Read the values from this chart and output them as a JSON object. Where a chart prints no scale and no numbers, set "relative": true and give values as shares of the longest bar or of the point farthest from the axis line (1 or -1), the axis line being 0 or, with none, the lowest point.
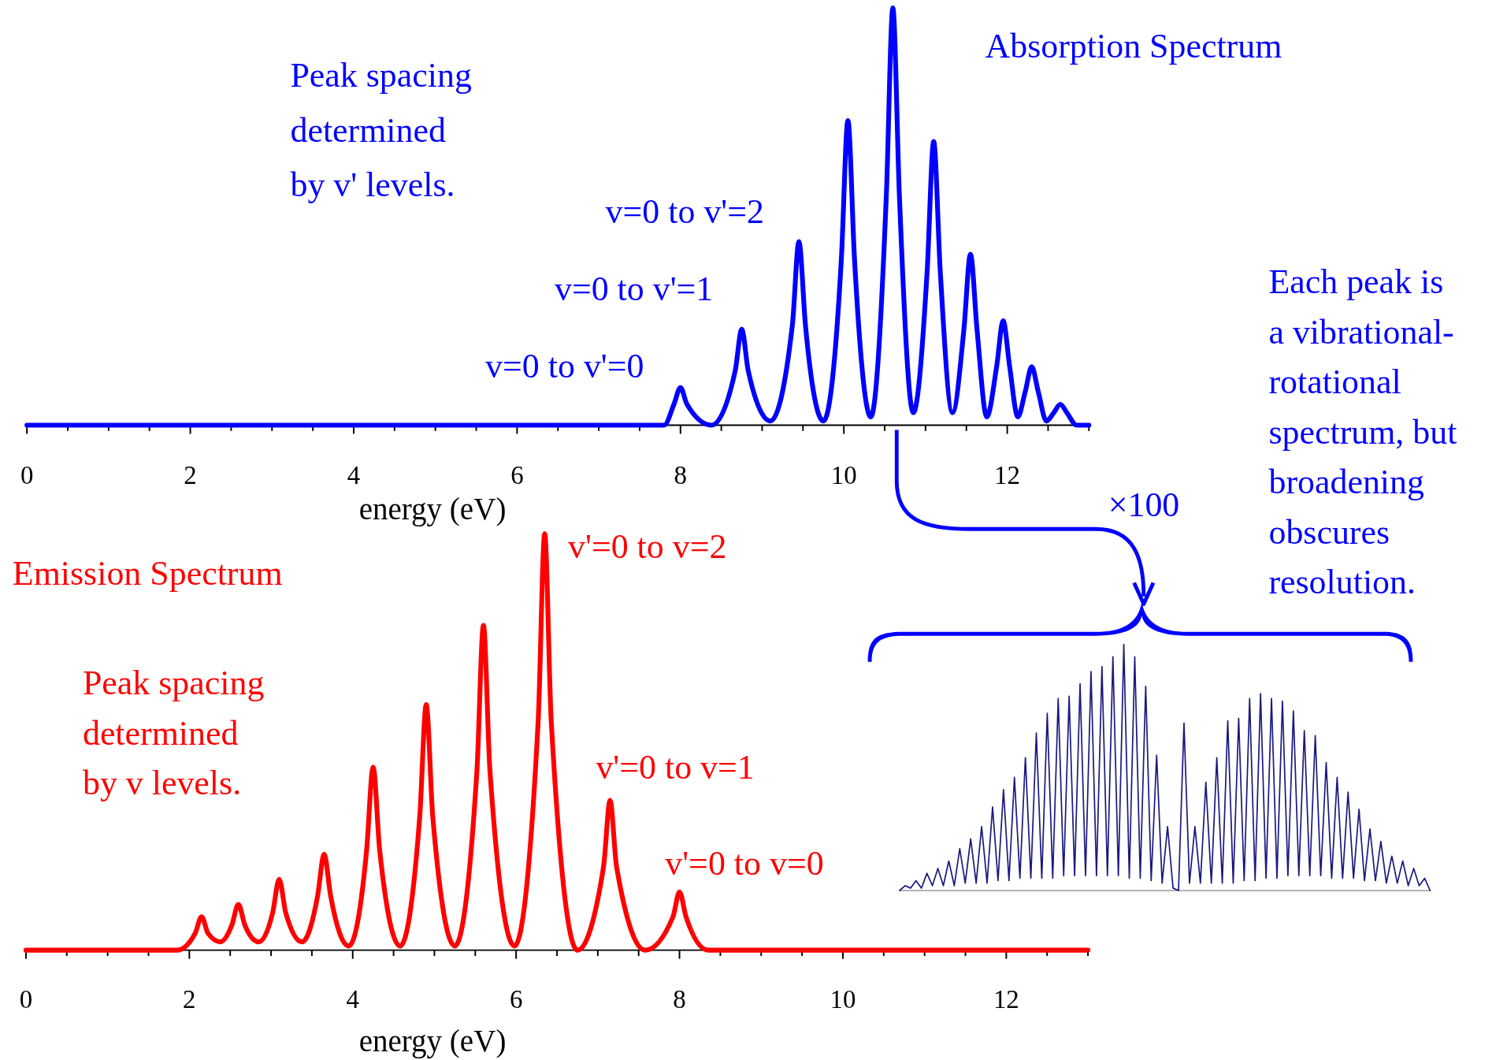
{
  "chart_data": [
    {
      "type": "line",
      "title": "Absorption Spectrum",
      "xlabel": "energy (eV)",
      "relative": true,
      "xlim": [
        0,
        13
      ],
      "xticks": [
        0,
        {
          "value": 0.5,
          "label": null
        },
        {
          "value": 1,
          "label": null
        },
        {
          "value": 1.5,
          "label": null
        },
        2,
        {
          "value": 2.5,
          "label": null
        },
        {
          "value": 3,
          "label": null
        },
        {
          "value": 3.5,
          "label": null
        },
        4,
        {
          "value": 4.5,
          "label": null
        },
        {
          "value": 5,
          "label": null
        },
        {
          "value": 5.5,
          "label": null
        },
        6,
        {
          "value": 6.5,
          "label": null
        },
        {
          "value": 7,
          "label": null
        },
        {
          "value": 7.5,
          "label": null
        },
        8,
        {
          "value": 8.5,
          "label": null
        },
        {
          "value": 9,
          "label": null
        },
        {
          "value": 9.5,
          "label": null
        },
        10,
        {
          "value": 10.5,
          "label": null
        },
        {
          "value": 11,
          "label": null
        },
        {
          "value": 11.5,
          "label": null
        },
        12,
        {
          "value": 12.5,
          "label": null
        },
        {
          "value": 13,
          "label": null
        }
      ],
      "annotations": [
        "Peak spacing\ndetermined\nby v' levels.",
        "v=0 to v'=0",
        "v=0 to v'=1",
        "v=0 to v'=2",
        "Each peak is\na vibrational-\nrotational\nspectrum, but\nbroadening\nobscures\nresolution.",
        "×100"
      ],
      "series": [
        {
          "color": "#0000ff",
          "x": [
            0,
            7.8,
            7.92,
            8.0,
            8.08,
            8.38,
            8.67,
            8.75,
            8.83,
            9.1,
            9.37,
            9.45,
            9.53,
            9.75,
            9.97,
            10.05,
            10.13,
            10.33,
            10.52,
            10.6,
            10.68,
            10.85,
            11.02,
            11.1,
            11.18,
            11.33,
            11.47,
            11.55,
            11.63,
            11.75,
            11.87,
            11.95,
            12.03,
            12.13,
            12.22,
            12.3,
            12.38,
            12.48,
            12.57,
            12.65,
            12.73,
            12.85,
            13
          ],
          "values": [
            0,
            0,
            0.05,
            0.09,
            0.05,
            0,
            0.13,
            0.23,
            0.13,
            0.01,
            0.24,
            0.44,
            0.24,
            0.01,
            0.4,
            0.73,
            0.4,
            0.02,
            0.55,
            1,
            0.55,
            0.03,
            0.37,
            0.68,
            0.37,
            0.03,
            0.23,
            0.41,
            0.23,
            0.02,
            0.14,
            0.25,
            0.14,
            0.02,
            0.08,
            0.14,
            0.08,
            0.01,
            0.03,
            0.05,
            0.03,
            0,
            0
          ]
        }
      ]
    },
    {
      "type": "line",
      "title": "Emission Spectrum",
      "xlabel": "energy (eV)",
      "relative": true,
      "xlim": [
        0,
        13
      ],
      "xticks": [
        0,
        {
          "value": 0.5,
          "label": null
        },
        {
          "value": 1,
          "label": null
        },
        {
          "value": 1.5,
          "label": null
        },
        2,
        {
          "value": 2.5,
          "label": null
        },
        {
          "value": 3,
          "label": null
        },
        {
          "value": 3.5,
          "label": null
        },
        4,
        {
          "value": 4.5,
          "label": null
        },
        {
          "value": 5,
          "label": null
        },
        {
          "value": 5.5,
          "label": null
        },
        6,
        {
          "value": 6.5,
          "label": null
        },
        {
          "value": 7,
          "label": null
        },
        {
          "value": 7.5,
          "label": null
        },
        8,
        {
          "value": 8.5,
          "label": null
        },
        {
          "value": 9,
          "label": null
        },
        {
          "value": 9.5,
          "label": null
        },
        10,
        {
          "value": 10.5,
          "label": null
        },
        {
          "value": 11,
          "label": null
        },
        {
          "value": 11.5,
          "label": null
        },
        12,
        {
          "value": 12.5,
          "label": null
        },
        {
          "value": 13,
          "label": null
        }
      ],
      "annotations": [
        "Peak spacing\ndetermined\nby v levels.",
        "v'=0 to v=2",
        "v'=0 to v=1",
        "v'=0 to v=0"
      ],
      "series": [
        {
          "color": "#ff0000",
          "x": [
            0,
            1.85,
            2.07,
            2.15,
            2.23,
            2.38,
            2.52,
            2.6,
            2.68,
            2.85,
            3.02,
            3.1,
            3.18,
            3.38,
            3.57,
            3.65,
            3.73,
            3.95,
            4.17,
            4.25,
            4.33,
            4.58,
            4.82,
            4.9,
            4.98,
            5.25,
            5.52,
            5.6,
            5.68,
            5.98,
            6.27,
            6.35,
            6.43,
            6.75,
            7.07,
            7.15,
            7.23,
            7.58,
            7.92,
            8.0,
            8.08,
            8.35,
            13
          ],
          "values": [
            0,
            0,
            0.04,
            0.08,
            0.04,
            0.02,
            0.06,
            0.11,
            0.06,
            0.02,
            0.09,
            0.17,
            0.09,
            0.02,
            0.13,
            0.23,
            0.13,
            0.01,
            0.24,
            0.44,
            0.24,
            0.01,
            0.32,
            0.59,
            0.32,
            0.01,
            0.43,
            0.78,
            0.43,
            0.01,
            0.55,
            1,
            0.55,
            0,
            0.2,
            0.36,
            0.2,
            0,
            0.08,
            0.14,
            0.08,
            0,
            0
          ]
        }
      ]
    },
    {
      "type": "line",
      "relative": true,
      "categories": [
        null,
        null,
        null,
        null,
        null,
        null,
        null,
        null,
        null,
        null,
        null,
        null,
        null,
        null,
        null,
        null,
        null,
        null,
        null,
        null,
        null,
        null,
        null,
        null,
        null,
        null,
        null,
        null,
        null,
        null,
        null,
        null,
        null,
        null,
        null,
        null,
        null,
        null,
        null,
        null,
        null,
        null,
        null,
        null,
        null,
        null,
        null,
        null,
        null,
        null,
        null,
        null,
        null,
        null,
        null,
        null,
        null,
        null,
        null,
        null,
        null,
        null,
        null,
        null,
        null,
        null,
        null,
        null,
        null,
        null,
        null,
        null,
        null,
        null,
        null,
        null,
        null,
        null,
        null,
        null,
        null,
        null,
        null,
        null,
        null,
        null,
        null,
        null,
        null,
        null,
        null,
        null,
        null,
        null,
        null,
        null,
        null,
        null
      ],
      "series": [
        {
          "color": "#1a1a80",
          "values": [
            0,
            0.02,
            0.01,
            0.04,
            0.01,
            0.07,
            0.02,
            0.09,
            0.02,
            0.12,
            0.02,
            0.17,
            0.03,
            0.21,
            0.03,
            0.26,
            0.03,
            0.34,
            0.04,
            0.41,
            0.04,
            0.46,
            0.05,
            0.54,
            0.05,
            0.64,
            0.05,
            0.72,
            0.05,
            0.78,
            0.06,
            0.79,
            0.06,
            0.84,
            0.06,
            0.89,
            0.06,
            0.91,
            0.06,
            0.95,
            0.06,
            1,
            0.05,
            0.95,
            0.05,
            0.83,
            0.04,
            0.55,
            0.03,
            0.26,
            0.01,
            0,
            0.68,
            0.03,
            0.26,
            0.03,
            0.44,
            0.03,
            0.54,
            0.03,
            0.69,
            0.03,
            0.7,
            0.04,
            0.78,
            0.04,
            0.8,
            0.05,
            0.78,
            0.05,
            0.77,
            0.06,
            0.73,
            0.06,
            0.65,
            0.06,
            0.63,
            0.06,
            0.52,
            0.05,
            0.46,
            0.05,
            0.4,
            0.05,
            0.33,
            0.04,
            0.25,
            0.04,
            0.2,
            0.03,
            0.14,
            0.03,
            0.12,
            0.02,
            0.09,
            0.02,
            0.05,
            0
          ]
        }
      ]
    }
  ]
}
